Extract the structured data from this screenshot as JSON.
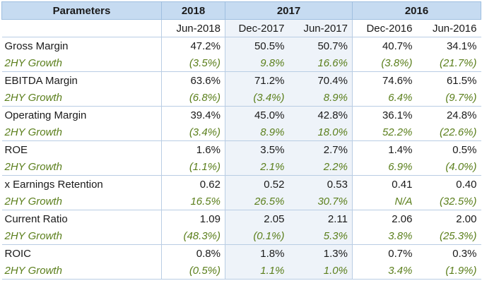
{
  "header": {
    "parameters_label": "Parameters",
    "years": [
      "2018",
      "2017",
      "2016"
    ],
    "periods": [
      "Jun-2018",
      "Dec-2017",
      "Jun-2017",
      "Dec-2016",
      "Jun-2016"
    ]
  },
  "rows": [
    {
      "label": "Gross Margin",
      "values": [
        "47.2%",
        "50.5%",
        "50.7%",
        "40.7%",
        "34.1%"
      ],
      "growth_label": "2HY Growth",
      "growth": [
        "(3.5%)",
        "9.8%",
        "16.6%",
        "(3.8%)",
        "(21.7%)"
      ]
    },
    {
      "label": "EBITDA Margin",
      "values": [
        "63.6%",
        "71.2%",
        "70.4%",
        "74.6%",
        "61.5%"
      ],
      "growth_label": "2HY Growth",
      "growth": [
        "(6.8%)",
        "(3.4%)",
        "8.9%",
        "6.4%",
        "(9.7%)"
      ]
    },
    {
      "label": "Operating Margin",
      "values": [
        "39.4%",
        "45.0%",
        "42.8%",
        "36.1%",
        "24.8%"
      ],
      "growth_label": "2HY Growth",
      "growth": [
        "(3.4%)",
        "8.9%",
        "18.0%",
        "52.2%",
        "(22.6%)"
      ]
    },
    {
      "label": "ROE",
      "values": [
        "1.6%",
        "3.5%",
        "2.7%",
        "1.4%",
        "0.5%"
      ],
      "growth_label": "2HY Growth",
      "growth": [
        "(1.1%)",
        "2.1%",
        "2.2%",
        "6.9%",
        "(4.0%)"
      ]
    },
    {
      "label": "x Earnings Retention",
      "values": [
        "0.62",
        "0.52",
        "0.53",
        "0.41",
        "0.40"
      ],
      "growth_label": "2HY Growth",
      "growth": [
        "16.5%",
        "26.5%",
        "30.7%",
        "N/A",
        "(32.5%)"
      ]
    },
    {
      "label": "Current Ratio",
      "values": [
        "1.09",
        "2.05",
        "2.11",
        "2.06",
        "2.00"
      ],
      "growth_label": "2HY Growth",
      "growth": [
        "(48.3%)",
        "(0.1%)",
        "5.3%",
        "3.8%",
        "(25.3%)"
      ]
    },
    {
      "label": "ROIC",
      "values": [
        "0.8%",
        "1.8%",
        "1.3%",
        "0.7%",
        "0.3%"
      ],
      "growth_label": "2HY Growth",
      "growth": [
        "(0.5%)",
        "1.1%",
        "1.0%",
        "3.4%",
        "(1.9%)"
      ]
    }
  ],
  "colors": {
    "header_bg": "#c6dbf1",
    "growth_text": "#5b7f1c",
    "shaded_column": "#eef3f9"
  }
}
